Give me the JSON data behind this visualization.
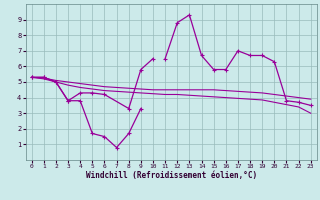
{
  "xlabel": "Windchill (Refroidissement éolien,°C)",
  "x_values": [
    0,
    1,
    2,
    3,
    4,
    5,
    6,
    7,
    8,
    9,
    10,
    11,
    12,
    13,
    14,
    15,
    16,
    17,
    18,
    19,
    20,
    21,
    22,
    23
  ],
  "line_low": [
    5.3,
    5.3,
    5.0,
    3.8,
    3.8,
    1.7,
    1.5,
    0.8,
    1.7,
    3.3,
    null,
    null,
    null,
    null,
    null,
    null,
    null,
    null,
    null,
    null,
    null,
    null,
    null,
    null
  ],
  "line_high": [
    null,
    null,
    null,
    null,
    null,
    null,
    null,
    null,
    null,
    null,
    null,
    6.5,
    8.8,
    9.3,
    6.7,
    5.8,
    5.8,
    7.0,
    6.7,
    6.7,
    6.3,
    3.8,
    3.7,
    3.5
  ],
  "line_high_pre": [
    5.3,
    5.3,
    5.0,
    3.8,
    4.3,
    4.3,
    4.2,
    null,
    3.3,
    5.8,
    6.5,
    null,
    null,
    null,
    null,
    null,
    null,
    null,
    null,
    null,
    null,
    null,
    null,
    null
  ],
  "line_env_upper": [
    5.3,
    5.25,
    5.1,
    5.0,
    4.9,
    4.8,
    4.7,
    4.65,
    4.6,
    4.55,
    4.5,
    4.5,
    4.5,
    4.5,
    4.5,
    4.5,
    4.45,
    4.4,
    4.35,
    4.3,
    4.2,
    4.1,
    4.0,
    3.9
  ],
  "line_env_lower": [
    5.3,
    5.2,
    5.0,
    4.8,
    4.65,
    4.55,
    4.45,
    4.4,
    4.35,
    4.3,
    4.25,
    4.2,
    4.2,
    4.15,
    4.1,
    4.05,
    4.0,
    3.95,
    3.9,
    3.85,
    3.7,
    3.55,
    3.4,
    3.0
  ],
  "color_main": "#990099",
  "bg_color": "#cceaea",
  "grid_color": "#99bbbb",
  "ylim": [
    0,
    10
  ],
  "xlim": [
    -0.5,
    23.5
  ],
  "yticks": [
    1,
    2,
    3,
    4,
    5,
    6,
    7,
    8,
    9
  ],
  "xticks": [
    0,
    1,
    2,
    3,
    4,
    5,
    6,
    7,
    8,
    9,
    10,
    11,
    12,
    13,
    14,
    15,
    16,
    17,
    18,
    19,
    20,
    21,
    22,
    23
  ]
}
